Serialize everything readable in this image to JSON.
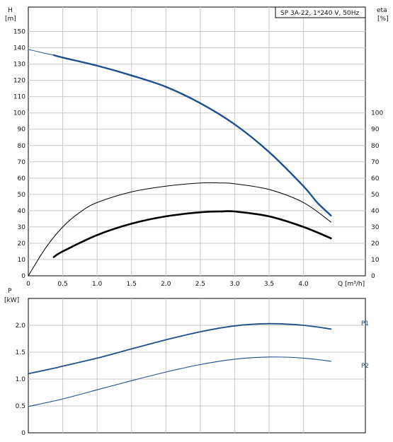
{
  "chart_data": [
    {
      "type": "line",
      "title": "SP 3A-22, 1*240 V, 50Hz",
      "xlabel": "Q [m³/h]",
      "ylabel": "H",
      "ylabel_unit": "[m]",
      "y2label": "eta",
      "y2label_unit": "[%]",
      "xlim": [
        0,
        4.9
      ],
      "ylim": [
        0,
        165
      ],
      "y2lim": [
        0,
        165
      ],
      "x_ticks": [
        "0",
        "0.5",
        "1.0",
        "1.5",
        "2.0",
        "2.5",
        "3.0",
        "3.5",
        "4.0"
      ],
      "y_ticks": [
        "0",
        "10",
        "20",
        "30",
        "40",
        "50",
        "60",
        "70",
        "80",
        "90",
        "100",
        "110",
        "120",
        "130",
        "140",
        "150"
      ],
      "y2_ticks": [
        "0",
        "10",
        "20",
        "30",
        "40",
        "50",
        "60",
        "70",
        "80",
        "90",
        "100"
      ],
      "grid": true,
      "series": [
        {
          "role": "head-thin",
          "color": "#1f4e8c",
          "values": [
            [
              0,
              139
            ],
            [
              0.2,
              137
            ],
            [
              0.37,
              135.5
            ]
          ]
        },
        {
          "role": "head",
          "color": "#1f4e8c",
          "values": [
            [
              0.37,
              135.5
            ],
            [
              0.5,
              134
            ],
            [
              1.0,
              129
            ],
            [
              1.5,
              123
            ],
            [
              2.0,
              116
            ],
            [
              2.5,
              106
            ],
            [
              3.0,
              93
            ],
            [
              3.5,
              76
            ],
            [
              4.0,
              55
            ],
            [
              4.2,
              45
            ],
            [
              4.4,
              37
            ]
          ]
        },
        {
          "role": "efficiency-thin",
          "color": "#000000",
          "values": [
            [
              0,
              0
            ],
            [
              0.25,
              17
            ],
            [
              0.5,
              30
            ],
            [
              0.75,
              39
            ],
            [
              1.0,
              45
            ],
            [
              1.5,
              51.5
            ],
            [
              2.0,
              55
            ],
            [
              2.5,
              57
            ],
            [
              2.8,
              57
            ],
            [
              3.0,
              56.5
            ],
            [
              3.5,
              53
            ],
            [
              4.0,
              45
            ],
            [
              4.4,
              33
            ]
          ]
        },
        {
          "role": "efficiency-thick",
          "color": "#000000",
          "values": [
            [
              0.37,
              11.5
            ],
            [
              0.5,
              15
            ],
            [
              1.0,
              25
            ],
            [
              1.5,
              32
            ],
            [
              2.0,
              36.5
            ],
            [
              2.5,
              39
            ],
            [
              2.8,
              39.5
            ],
            [
              3.0,
              39.5
            ],
            [
              3.5,
              36.5
            ],
            [
              4.0,
              30
            ],
            [
              4.4,
              23
            ]
          ]
        }
      ]
    },
    {
      "type": "line",
      "xlabel": "",
      "ylabel": "P",
      "ylabel_unit": "[kW]",
      "xlim": [
        0,
        4.9
      ],
      "ylim": [
        0,
        2.5
      ],
      "y_ticks": [
        "0",
        "0.5",
        "1.0",
        "1.5",
        "2.0"
      ],
      "grid": true,
      "series": [
        {
          "name": "P1",
          "color": "#1f4e8c",
          "values": [
            [
              0,
              1.1
            ],
            [
              0.37,
              1.2
            ],
            [
              0.5,
              1.24
            ],
            [
              1.0,
              1.39
            ],
            [
              1.5,
              1.56
            ],
            [
              2.0,
              1.73
            ],
            [
              2.5,
              1.88
            ],
            [
              3.0,
              1.99
            ],
            [
              3.5,
              2.03
            ],
            [
              4.0,
              2.0
            ],
            [
              4.4,
              1.93
            ]
          ]
        },
        {
          "name": "P2",
          "color": "#1f4e8c",
          "values": [
            [
              0,
              0.49
            ],
            [
              0.5,
              0.63
            ],
            [
              1.0,
              0.8
            ],
            [
              1.5,
              0.97
            ],
            [
              2.0,
              1.13
            ],
            [
              2.5,
              1.27
            ],
            [
              3.0,
              1.37
            ],
            [
              3.5,
              1.41
            ],
            [
              4.0,
              1.39
            ],
            [
              4.4,
              1.33
            ]
          ]
        }
      ]
    }
  ]
}
